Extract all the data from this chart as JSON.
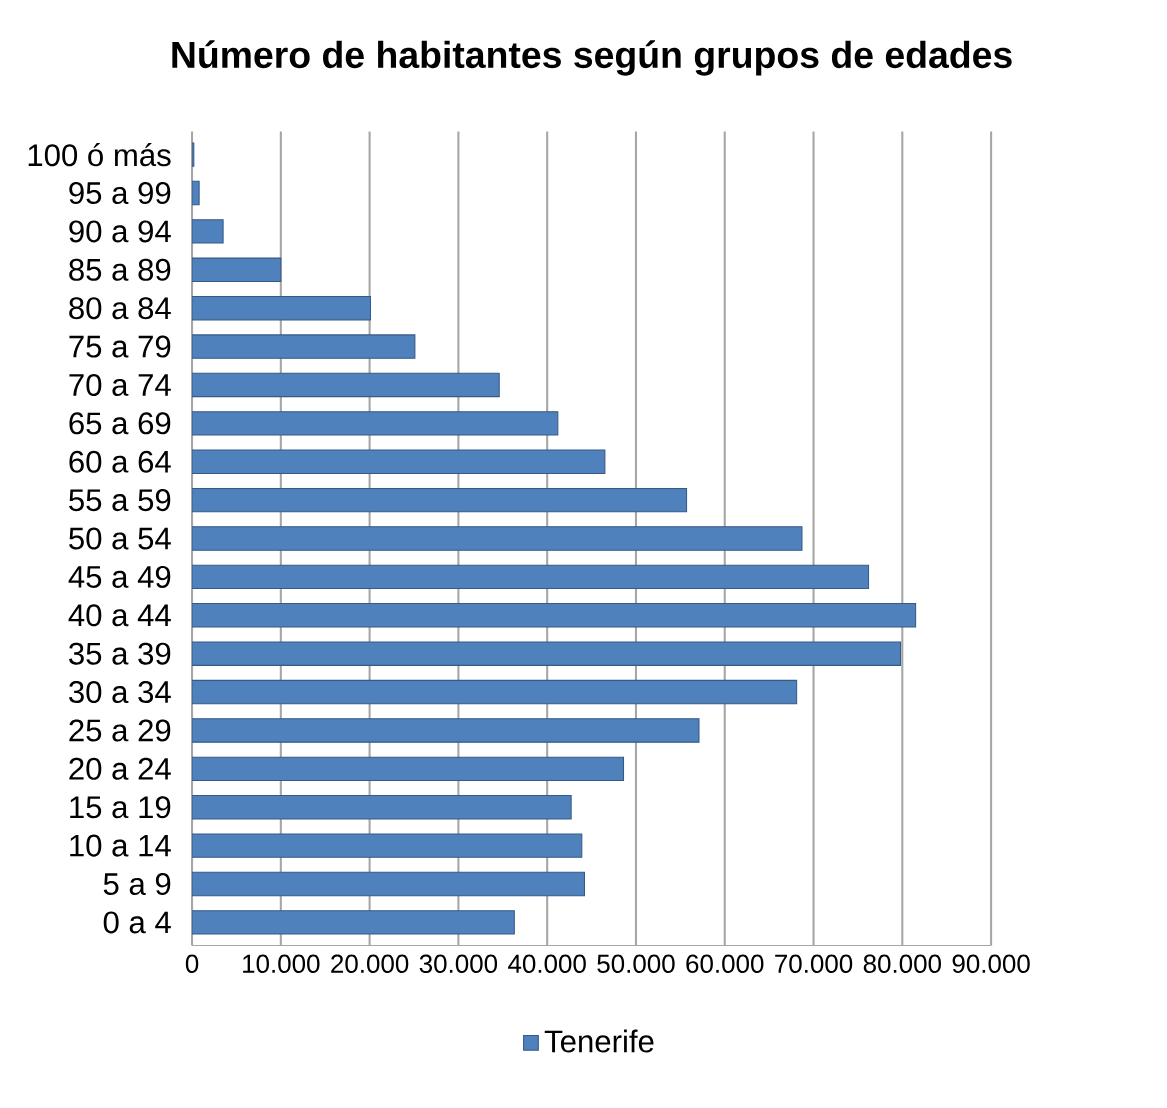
{
  "chart_data": {
    "type": "bar",
    "orientation": "horizontal",
    "title": "Número de habitantes según grupos de edades",
    "categories": [
      "100 ó más",
      "95 a 99",
      "90 a 94",
      "85 a 89",
      "80 a 84",
      "75 a 79",
      "70 a 74",
      "65 a 69",
      "60 a 64",
      "55 a 59",
      "50 a 54",
      "45 a 49",
      "40 a 44",
      "35 a 39",
      "30 a 34",
      "25 a 29",
      "20 a 24",
      "15 a 19",
      "10 a 14",
      "5 a 9",
      "0 a 4"
    ],
    "series": [
      {
        "name": "Tenerife",
        "color": "#4f81bd",
        "values": [
          200,
          800,
          3500,
          10000,
          20100,
          25100,
          34600,
          41200,
          46500,
          55700,
          68700,
          76200,
          81500,
          79800,
          68100,
          57100,
          48600,
          42700,
          43900,
          44200,
          36300
        ]
      }
    ],
    "xlim": [
      0,
      90000
    ],
    "xticks": [
      0,
      {
        "value": 10000,
        "label": "10.000"
      },
      {
        "value": 20000,
        "label": "20.000"
      },
      {
        "value": 30000,
        "label": "30.000"
      },
      {
        "value": 40000,
        "label": "40.000"
      },
      {
        "value": 50000,
        "label": "50.000"
      },
      {
        "value": 60000,
        "label": "60.000"
      },
      {
        "value": 70000,
        "label": "70.000"
      },
      {
        "value": 80000,
        "label": "80.000"
      },
      {
        "value": 90000,
        "label": "90.000"
      }
    ],
    "grid": "x",
    "legend": "bottom"
  }
}
